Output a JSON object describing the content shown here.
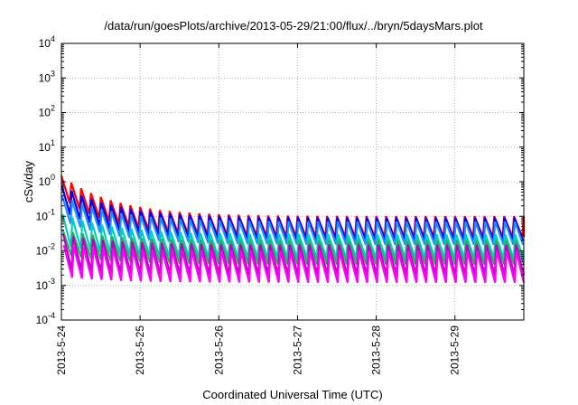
{
  "chart_data": {
    "type": "line",
    "title": "/data/run/goesPlots/archive/2013-05-29/21:00/flux/../bryn/5daysMars.plot",
    "xlabel": "Coordinated Universal Time (UTC)",
    "ylabel": "cSv/day",
    "yscale": "log",
    "ylim": [
      0.0001,
      10000
    ],
    "y_ticks": [
      {
        "exp": -4,
        "base": "10",
        "sup": "-4"
      },
      {
        "exp": -3,
        "base": "10",
        "sup": "-3"
      },
      {
        "exp": -2,
        "base": "10",
        "sup": "-2"
      },
      {
        "exp": -1,
        "base": "10",
        "sup": "-1"
      },
      {
        "exp": 0,
        "base": "10",
        "sup": "0"
      },
      {
        "exp": 1,
        "base": "10",
        "sup": "1"
      },
      {
        "exp": 2,
        "base": "10",
        "sup": "2"
      },
      {
        "exp": 3,
        "base": "10",
        "sup": "3"
      },
      {
        "exp": 4,
        "base": "10",
        "sup": "4"
      }
    ],
    "xlim": [
      "2013-05-24 00:00",
      "2013-05-29 21:00"
    ],
    "x_ticks": [
      "2013-5-24",
      "2013-5-25",
      "2013-5-26",
      "2013-5-27",
      "2013-5-28",
      "2013-5-29"
    ],
    "grid": true,
    "sawtooth_peaks_per_day": 8,
    "series": [
      {
        "color": "#ff0000",
        "peak_start": 1.5,
        "peak_late": 0.1,
        "trough_start": 0.35,
        "trough_late": 0.025
      },
      {
        "color": "#0000ff",
        "peak_start": 0.8,
        "peak_late": 0.09,
        "trough_start": 0.15,
        "trough_late": 0.02
      },
      {
        "color": "#1e90ff",
        "peak_start": 0.4,
        "peak_late": 0.07,
        "trough_start": 0.08,
        "trough_late": 0.015
      },
      {
        "color": "#00d0c0",
        "peak_start": 0.12,
        "peak_late": 0.03,
        "trough_start": 0.015,
        "trough_late": 0.006
      },
      {
        "color": "#20b060",
        "peak_start": 0.04,
        "peak_late": 0.02,
        "trough_start": 0.008,
        "trough_late": 0.004
      },
      {
        "color": "#c000c0",
        "peak_start": 0.03,
        "peak_late": 0.015,
        "trough_start": 0.003,
        "trough_late": 0.002
      },
      {
        "color": "#ff00ff",
        "peak_start": 0.015,
        "peak_late": 0.01,
        "trough_start": 0.0018,
        "trough_late": 0.0012
      }
    ]
  }
}
